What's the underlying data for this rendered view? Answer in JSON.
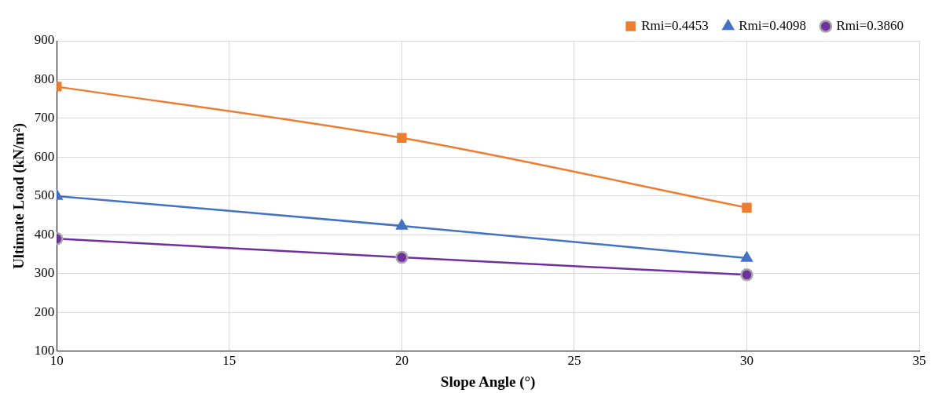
{
  "chart_data": {
    "type": "line",
    "xlabel": "Slope Angle (°)",
    "ylabel": "Ultimate Load (kN/m²)",
    "x": [
      10,
      20,
      30
    ],
    "series": [
      {
        "name": "Rmi=0.4453",
        "color": "#ed7d31",
        "marker": "square",
        "values": [
          782,
          650,
          470
        ]
      },
      {
        "name": "Rmi=0.4098",
        "color": "#4472c4",
        "marker": "triangle",
        "values": [
          500,
          423,
          340
        ]
      },
      {
        "name": "Rmi=0.3860",
        "color": "#7030a0",
        "marker": "circle",
        "values": [
          390,
          342,
          297
        ]
      }
    ],
    "xlim": [
      10,
      35
    ],
    "xticks": [
      10,
      15,
      20,
      25,
      30,
      35
    ],
    "ylim": [
      100,
      900
    ],
    "yticks": [
      100,
      200,
      300,
      400,
      500,
      600,
      700,
      800,
      900
    ],
    "grid": true,
    "legend": "top right",
    "line_style": "solid"
  }
}
